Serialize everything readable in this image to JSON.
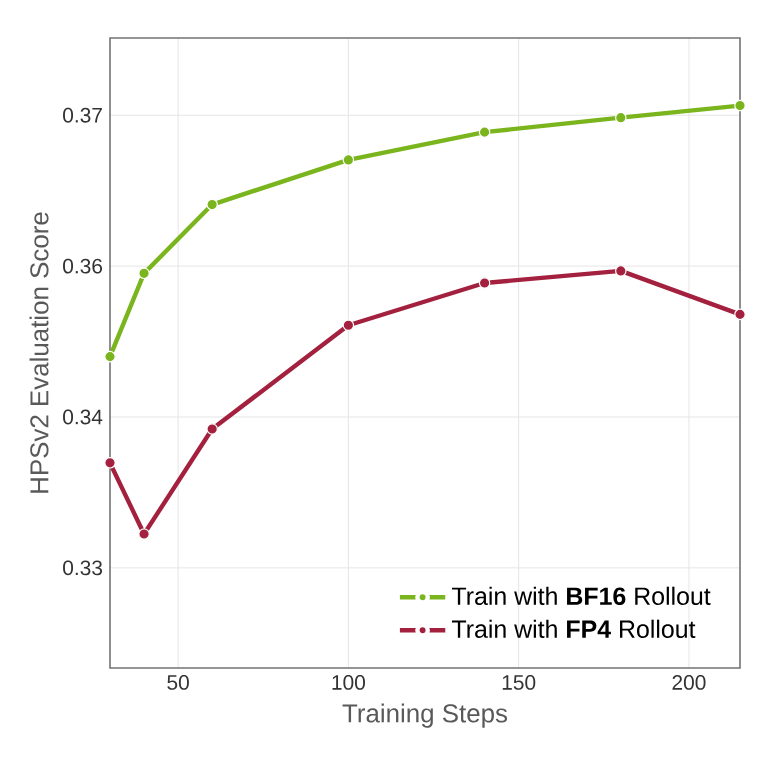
{
  "chart_data": {
    "type": "line",
    "xlabel": "Training Steps",
    "ylabel": "HPSv2 Evaluation Score",
    "x": [
      30,
      40,
      60,
      100,
      140,
      180,
      215
    ],
    "series": [
      {
        "name": "Train with **BF16** Rollout",
        "color": "#7ab51d",
        "values": [
          0.35,
          0.3569,
          0.3626,
          0.3663,
          0.3686,
          0.3698,
          0.3708
        ]
      },
      {
        "name": "Train with **FP4** Rollout",
        "color": "#a3213e",
        "values": [
          0.3412,
          0.3353,
          0.344,
          0.3526,
          0.3561,
          0.3571,
          0.3535
        ]
      }
    ],
    "xlim": [
      30,
      215
    ],
    "ylim": [
      0.3242,
      0.3764
    ],
    "xticks": [
      50,
      100,
      150,
      200
    ],
    "yticks": [
      {
        "value": 0.3325,
        "label": "0.33"
      },
      {
        "value": 0.345,
        "label": "0.34"
      },
      {
        "value": 0.3575,
        "label": "0.36"
      },
      {
        "value": 0.37,
        "label": "0.37"
      }
    ],
    "grid": true,
    "legend": "bottom right",
    "marker": "circle",
    "line_style": "solid"
  }
}
